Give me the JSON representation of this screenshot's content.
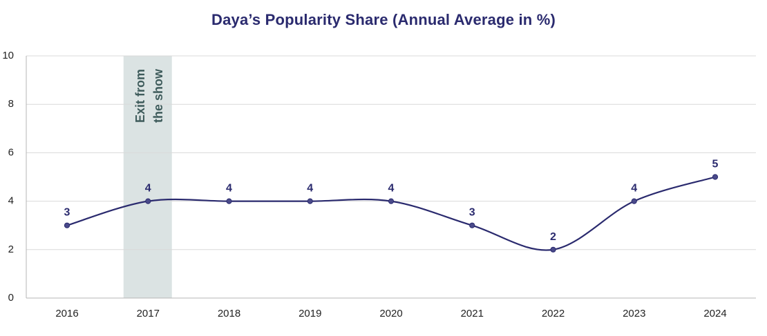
{
  "chart_data": {
    "type": "line",
    "title": "Daya’s Popularity Share (Annual Average in %)",
    "xlabel": "",
    "ylabel": "",
    "categories": [
      "2016",
      "2017",
      "2018",
      "2019",
      "2020",
      "2021",
      "2022",
      "2023",
      "2024"
    ],
    "series": [
      {
        "name": "Popularity Share",
        "values": [
          3,
          4,
          4,
          4,
          4,
          3,
          2,
          4,
          5
        ]
      }
    ],
    "ylim": [
      0,
      10
    ],
    "yticks": [
      0,
      2,
      4,
      6,
      8,
      10
    ],
    "grid": true,
    "annotation": {
      "category": "2017",
      "lines": [
        "Exit from",
        "the show"
      ]
    },
    "colors": {
      "line": "#2a2a6e",
      "title": "#2a2a6e",
      "band": "#dbe3e3",
      "band_text": "#3f5c5c",
      "grid": "#d9d9d9"
    }
  }
}
